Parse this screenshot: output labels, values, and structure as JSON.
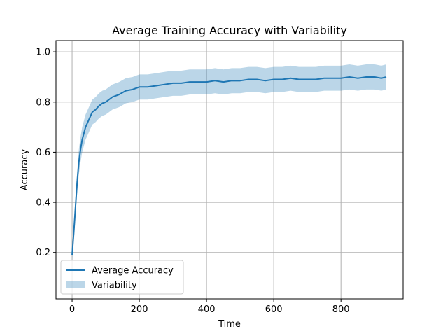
{
  "chart_data": {
    "type": "line",
    "title": "Average Training Accuracy with Variability",
    "xlabel": "Time",
    "ylabel": "Accuracy",
    "xlim": [
      -48,
      985
    ],
    "ylim": [
      0.015,
      1.045
    ],
    "xticks": [
      0,
      200,
      400,
      600,
      800
    ],
    "yticks": [
      0.2,
      0.4,
      0.6,
      0.8,
      1.0
    ],
    "xtick_labels": [
      "0",
      "200",
      "400",
      "600",
      "800"
    ],
    "ytick_labels": [
      "0.2",
      "0.4",
      "0.6",
      "0.8",
      "1.0"
    ],
    "grid": true,
    "legend_position": "lower-left",
    "series": [
      {
        "name": "Average Accuracy",
        "kind": "line",
        "color": "#1f77b4",
        "x": [
          0,
          5,
          10,
          15,
          20,
          25,
          30,
          40,
          50,
          60,
          70,
          80,
          90,
          100,
          110,
          120,
          140,
          160,
          180,
          200,
          225,
          250,
          275,
          300,
          325,
          350,
          375,
          400,
          425,
          450,
          475,
          500,
          525,
          550,
          575,
          600,
          625,
          650,
          675,
          700,
          725,
          750,
          775,
          800,
          825,
          850,
          875,
          900,
          920,
          935
        ],
        "y": [
          0.19,
          0.28,
          0.38,
          0.48,
          0.56,
          0.61,
          0.65,
          0.7,
          0.73,
          0.76,
          0.77,
          0.785,
          0.795,
          0.8,
          0.81,
          0.82,
          0.83,
          0.845,
          0.85,
          0.86,
          0.86,
          0.865,
          0.87,
          0.875,
          0.875,
          0.88,
          0.88,
          0.88,
          0.885,
          0.88,
          0.885,
          0.885,
          0.89,
          0.89,
          0.885,
          0.89,
          0.89,
          0.895,
          0.89,
          0.89,
          0.89,
          0.895,
          0.895,
          0.895,
          0.9,
          0.895,
          0.9,
          0.9,
          0.895,
          0.9
        ]
      },
      {
        "name": "Variability",
        "kind": "band",
        "color": "#1f77b4",
        "opacity": 0.3,
        "x": [
          0,
          5,
          10,
          15,
          20,
          25,
          30,
          40,
          50,
          60,
          70,
          80,
          90,
          100,
          110,
          120,
          140,
          160,
          180,
          200,
          225,
          250,
          275,
          300,
          325,
          350,
          375,
          400,
          425,
          450,
          475,
          500,
          525,
          550,
          575,
          600,
          625,
          650,
          675,
          700,
          725,
          750,
          775,
          800,
          825,
          850,
          875,
          900,
          920,
          935
        ],
        "lower": [
          0.17,
          0.25,
          0.34,
          0.44,
          0.51,
          0.56,
          0.6,
          0.65,
          0.68,
          0.71,
          0.72,
          0.735,
          0.745,
          0.75,
          0.76,
          0.77,
          0.78,
          0.795,
          0.8,
          0.81,
          0.81,
          0.815,
          0.82,
          0.825,
          0.825,
          0.83,
          0.83,
          0.83,
          0.835,
          0.83,
          0.835,
          0.835,
          0.84,
          0.84,
          0.835,
          0.84,
          0.84,
          0.845,
          0.84,
          0.84,
          0.84,
          0.845,
          0.845,
          0.845,
          0.85,
          0.845,
          0.85,
          0.85,
          0.845,
          0.85
        ],
        "upper": [
          0.21,
          0.31,
          0.42,
          0.52,
          0.61,
          0.66,
          0.7,
          0.75,
          0.78,
          0.81,
          0.82,
          0.835,
          0.845,
          0.85,
          0.86,
          0.87,
          0.88,
          0.895,
          0.9,
          0.91,
          0.91,
          0.915,
          0.92,
          0.925,
          0.925,
          0.93,
          0.93,
          0.93,
          0.935,
          0.93,
          0.935,
          0.935,
          0.94,
          0.94,
          0.935,
          0.94,
          0.94,
          0.945,
          0.94,
          0.94,
          0.94,
          0.945,
          0.945,
          0.945,
          0.95,
          0.945,
          0.95,
          0.95,
          0.945,
          0.95
        ]
      }
    ]
  }
}
